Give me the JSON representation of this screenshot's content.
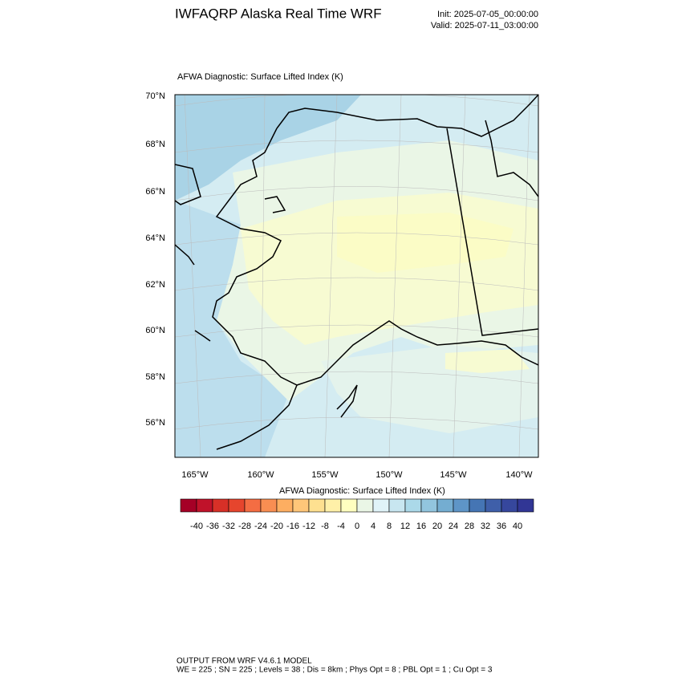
{
  "header": {
    "title": "IWFAQRP Alaska Real Time WRF",
    "init": "Init: 2025-07-05_00:00:00",
    "valid": "Valid: 2025-07-11_03:00:00"
  },
  "map": {
    "title": "AFWA Diagnostic: Surface Lifted Index   (K)",
    "lat_labels": [
      "70°N",
      "68°N",
      "66°N",
      "64°N",
      "62°N",
      "60°N",
      "58°N",
      "56°N"
    ],
    "lon_labels": [
      "165°W",
      "160°W",
      "155°W",
      "150°W",
      "145°W",
      "140°W"
    ]
  },
  "colorbar": {
    "title": "AFWA Diagnostic: Surface Lifted Index  (K)",
    "levels": [
      -40,
      -36,
      -32,
      -28,
      -24,
      -20,
      -16,
      -12,
      -8,
      -4,
      0,
      4,
      8,
      12,
      16,
      20,
      24,
      28,
      32,
      36,
      40
    ],
    "colors": [
      "#a50026",
      "#c0122a",
      "#d73027",
      "#e6452d",
      "#f46d43",
      "#f88e52",
      "#fdae61",
      "#fec679",
      "#fee090",
      "#fff0a8",
      "#ffffbf",
      "#eaf6e6",
      "#e0f3f8",
      "#c8e6f0",
      "#abd9e9",
      "#92c5de",
      "#74add1",
      "#5e95c7",
      "#4575b4",
      "#3f5fa9",
      "#36479d",
      "#313695"
    ]
  },
  "footer": {
    "line1": "OUTPUT FROM WRF V4.6.1 MODEL",
    "line2": "WE = 225 ; SN = 225 ; Levels = 38 ; Dis = 8km ; Phys Opt = 8 ; PBL Opt = 1 ; Cu Opt = 3"
  }
}
